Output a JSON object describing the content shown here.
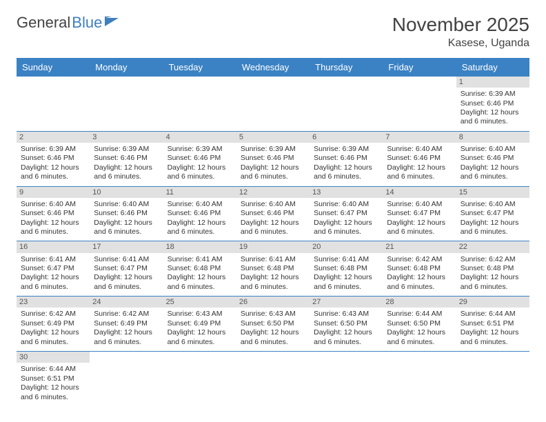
{
  "brand": {
    "name1": "General",
    "name2": "Blue"
  },
  "header": {
    "title": "November 2025",
    "location": "Kasese, Uganda"
  },
  "colors": {
    "header_bg": "#3b82c4",
    "header_text": "#ffffff",
    "daynum_bg": "#e1e1e1",
    "daynum_text": "#555555",
    "rule": "#3b82c4",
    "body_text": "#333333",
    "logo_gray": "#424242",
    "logo_blue": "#3d7fbf"
  },
  "typography": {
    "title_fontsize": 28,
    "location_fontsize": 16,
    "dayhead_fontsize": 13,
    "cell_fontsize": 10.5
  },
  "day_names": [
    "Sunday",
    "Monday",
    "Tuesday",
    "Wednesday",
    "Thursday",
    "Friday",
    "Saturday"
  ],
  "labels": {
    "sunrise": "Sunrise:",
    "sunset": "Sunset:",
    "daylight": "Daylight:"
  },
  "weeks": [
    [
      null,
      null,
      null,
      null,
      null,
      null,
      {
        "n": "1",
        "sunrise": "6:39 AM",
        "sunset": "6:46 PM",
        "daylight": "12 hours and 6 minutes."
      }
    ],
    [
      {
        "n": "2",
        "sunrise": "6:39 AM",
        "sunset": "6:46 PM",
        "daylight": "12 hours and 6 minutes."
      },
      {
        "n": "3",
        "sunrise": "6:39 AM",
        "sunset": "6:46 PM",
        "daylight": "12 hours and 6 minutes."
      },
      {
        "n": "4",
        "sunrise": "6:39 AM",
        "sunset": "6:46 PM",
        "daylight": "12 hours and 6 minutes."
      },
      {
        "n": "5",
        "sunrise": "6:39 AM",
        "sunset": "6:46 PM",
        "daylight": "12 hours and 6 minutes."
      },
      {
        "n": "6",
        "sunrise": "6:39 AM",
        "sunset": "6:46 PM",
        "daylight": "12 hours and 6 minutes."
      },
      {
        "n": "7",
        "sunrise": "6:40 AM",
        "sunset": "6:46 PM",
        "daylight": "12 hours and 6 minutes."
      },
      {
        "n": "8",
        "sunrise": "6:40 AM",
        "sunset": "6:46 PM",
        "daylight": "12 hours and 6 minutes."
      }
    ],
    [
      {
        "n": "9",
        "sunrise": "6:40 AM",
        "sunset": "6:46 PM",
        "daylight": "12 hours and 6 minutes."
      },
      {
        "n": "10",
        "sunrise": "6:40 AM",
        "sunset": "6:46 PM",
        "daylight": "12 hours and 6 minutes."
      },
      {
        "n": "11",
        "sunrise": "6:40 AM",
        "sunset": "6:46 PM",
        "daylight": "12 hours and 6 minutes."
      },
      {
        "n": "12",
        "sunrise": "6:40 AM",
        "sunset": "6:46 PM",
        "daylight": "12 hours and 6 minutes."
      },
      {
        "n": "13",
        "sunrise": "6:40 AM",
        "sunset": "6:47 PM",
        "daylight": "12 hours and 6 minutes."
      },
      {
        "n": "14",
        "sunrise": "6:40 AM",
        "sunset": "6:47 PM",
        "daylight": "12 hours and 6 minutes."
      },
      {
        "n": "15",
        "sunrise": "6:40 AM",
        "sunset": "6:47 PM",
        "daylight": "12 hours and 6 minutes."
      }
    ],
    [
      {
        "n": "16",
        "sunrise": "6:41 AM",
        "sunset": "6:47 PM",
        "daylight": "12 hours and 6 minutes."
      },
      {
        "n": "17",
        "sunrise": "6:41 AM",
        "sunset": "6:47 PM",
        "daylight": "12 hours and 6 minutes."
      },
      {
        "n": "18",
        "sunrise": "6:41 AM",
        "sunset": "6:48 PM",
        "daylight": "12 hours and 6 minutes."
      },
      {
        "n": "19",
        "sunrise": "6:41 AM",
        "sunset": "6:48 PM",
        "daylight": "12 hours and 6 minutes."
      },
      {
        "n": "20",
        "sunrise": "6:41 AM",
        "sunset": "6:48 PM",
        "daylight": "12 hours and 6 minutes."
      },
      {
        "n": "21",
        "sunrise": "6:42 AM",
        "sunset": "6:48 PM",
        "daylight": "12 hours and 6 minutes."
      },
      {
        "n": "22",
        "sunrise": "6:42 AM",
        "sunset": "6:48 PM",
        "daylight": "12 hours and 6 minutes."
      }
    ],
    [
      {
        "n": "23",
        "sunrise": "6:42 AM",
        "sunset": "6:49 PM",
        "daylight": "12 hours and 6 minutes."
      },
      {
        "n": "24",
        "sunrise": "6:42 AM",
        "sunset": "6:49 PM",
        "daylight": "12 hours and 6 minutes."
      },
      {
        "n": "25",
        "sunrise": "6:43 AM",
        "sunset": "6:49 PM",
        "daylight": "12 hours and 6 minutes."
      },
      {
        "n": "26",
        "sunrise": "6:43 AM",
        "sunset": "6:50 PM",
        "daylight": "12 hours and 6 minutes."
      },
      {
        "n": "27",
        "sunrise": "6:43 AM",
        "sunset": "6:50 PM",
        "daylight": "12 hours and 6 minutes."
      },
      {
        "n": "28",
        "sunrise": "6:44 AM",
        "sunset": "6:50 PM",
        "daylight": "12 hours and 6 minutes."
      },
      {
        "n": "29",
        "sunrise": "6:44 AM",
        "sunset": "6:51 PM",
        "daylight": "12 hours and 6 minutes."
      }
    ],
    [
      {
        "n": "30",
        "sunrise": "6:44 AM",
        "sunset": "6:51 PM",
        "daylight": "12 hours and 6 minutes."
      },
      null,
      null,
      null,
      null,
      null,
      null
    ]
  ]
}
